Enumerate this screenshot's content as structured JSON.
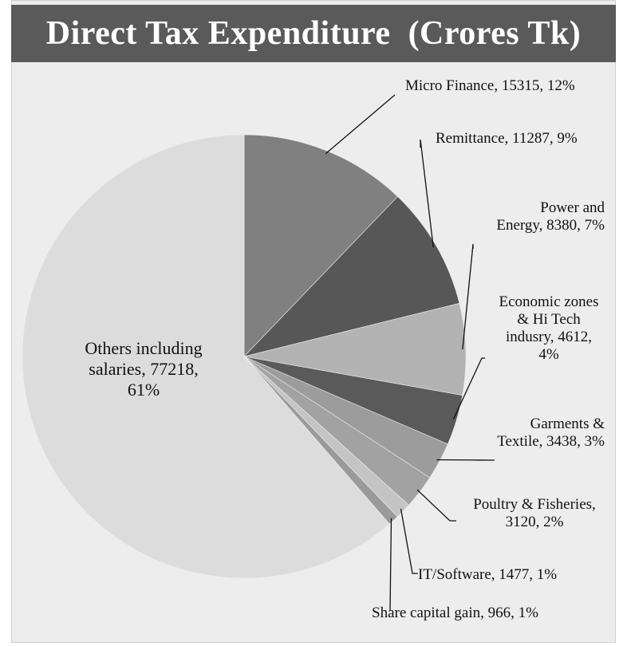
{
  "colors": {
    "background": "#ededed",
    "title_bar": "#5a5a5a",
    "title_text": "#ffffff",
    "leader": "#111111"
  },
  "chart_data": {
    "type": "pie",
    "title": "Direct Tax Expenditure  (Crores Tk)",
    "unit": "Crores Tk",
    "slices": [
      {
        "name": "Micro Finance",
        "value": 15315,
        "percent": 12,
        "label": "Micro Finance, 15315, 12%",
        "color": "#808080"
      },
      {
        "name": "Remittance",
        "value": 11287,
        "percent": 9,
        "label": "Remittance, 11287, 9%",
        "color": "#575757"
      },
      {
        "name": "Power and Energy",
        "value": 8380,
        "percent": 7,
        "label_lines": [
          "Power and",
          "Energy, 8380, 7%"
        ],
        "color": "#b3b3b3"
      },
      {
        "name": "Economic zones & Hi Tech indusry",
        "value": 4612,
        "percent": 4,
        "label_lines": [
          "Economic zones",
          "& Hi Tech",
          "indusry, 4612,",
          "4%"
        ],
        "color": "#5a5a5a"
      },
      {
        "name": "Garments & Textile",
        "value": 3438,
        "percent": 3,
        "label_lines": [
          "Garments &",
          "Textile, 3438, 3%"
        ],
        "color": "#9c9c9c"
      },
      {
        "name": "Poultry & Fisheries",
        "value": 3120,
        "percent": 2,
        "label_lines": [
          "Poultry & Fisheries,",
          "3120, 2%"
        ],
        "color": "#a2a2a2"
      },
      {
        "name": "IT/Software",
        "value": 1477,
        "percent": 1,
        "label": "IT/Software, 1477, 1%",
        "color": "#c4c4c4"
      },
      {
        "name": "Share capital gain",
        "value": 966,
        "percent": 1,
        "label": "Share capital gain, 966, 1%",
        "color": "#9a9a9a"
      },
      {
        "name": "Others including salaries",
        "value": 77218,
        "percent": 61,
        "label_lines": [
          "Others including",
          "salaries, 77218,",
          "61%"
        ],
        "color": "#dcdcdc"
      }
    ]
  }
}
